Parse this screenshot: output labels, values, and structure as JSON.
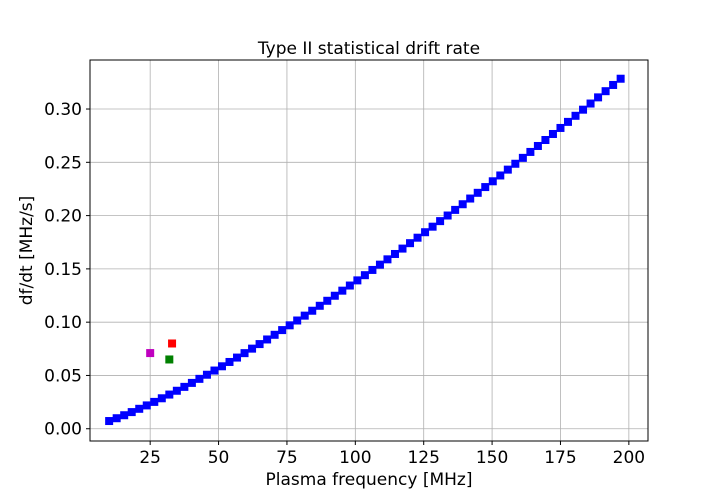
{
  "chart_data": {
    "type": "scatter",
    "title": "Type II statistical drift rate",
    "xlabel": "Plasma frequency [MHz]",
    "ylabel": "df/dt [MHz/s]",
    "xlim": [
      3,
      207
    ],
    "ylim": [
      -0.0115,
      0.346
    ],
    "x_ticks": [
      25,
      50,
      75,
      100,
      125,
      150,
      175,
      200
    ],
    "y_ticks": [
      0.0,
      0.05,
      0.1,
      0.15,
      0.2,
      0.25,
      0.3
    ],
    "y_tick_labels": [
      "0.00",
      "0.05",
      "0.10",
      "0.15",
      "0.20",
      "0.25",
      "0.30"
    ],
    "grid": true,
    "marker": "square",
    "series": [
      {
        "color": "#0000ff",
        "curve": {
          "formula": "y = 0.2317 * (x / 150)^1.28",
          "x_start": 10,
          "x_end": 198,
          "step": 2.75
        }
      },
      {
        "color": "#ff0000",
        "points": [
          {
            "x": 33,
            "y": 0.08
          }
        ]
      },
      {
        "color": "#bf00bf",
        "points": [
          {
            "x": 25,
            "y": 0.071
          }
        ]
      },
      {
        "color": "#008000",
        "points": [
          {
            "x": 32,
            "y": 0.065
          }
        ]
      }
    ]
  }
}
